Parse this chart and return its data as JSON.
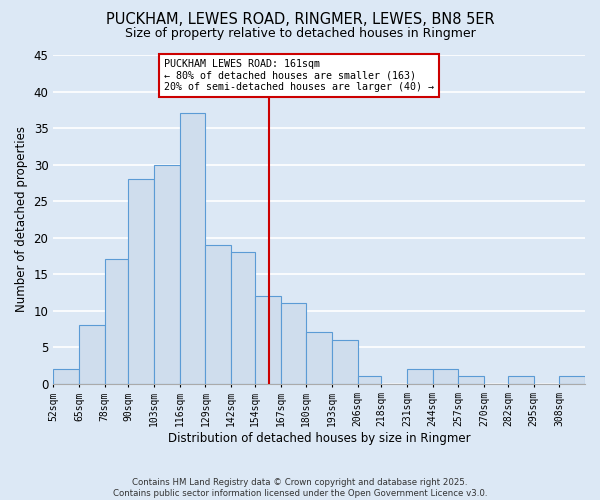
{
  "title": "PUCKHAM, LEWES ROAD, RINGMER, LEWES, BN8 5ER",
  "subtitle": "Size of property relative to detached houses in Ringmer",
  "xlabel": "Distribution of detached houses by size in Ringmer",
  "ylabel": "Number of detached properties",
  "bar_color": "#cfdded",
  "bar_edge_color": "#5b9bd5",
  "background_color": "#dce8f5",
  "grid_color": "#ffffff",
  "categories": [
    "52sqm",
    "65sqm",
    "78sqm",
    "90sqm",
    "103sqm",
    "116sqm",
    "129sqm",
    "142sqm",
    "154sqm",
    "167sqm",
    "180sqm",
    "193sqm",
    "206sqm",
    "218sqm",
    "231sqm",
    "244sqm",
    "257sqm",
    "270sqm",
    "282sqm",
    "295sqm",
    "308sqm"
  ],
  "values": [
    2,
    8,
    17,
    28,
    30,
    37,
    19,
    18,
    12,
    11,
    7,
    6,
    1,
    0,
    2,
    2,
    1,
    0,
    1,
    0,
    1
  ],
  "ylim": [
    0,
    45
  ],
  "yticks": [
    0,
    5,
    10,
    15,
    20,
    25,
    30,
    35,
    40,
    45
  ],
  "vline_color": "#cc0000",
  "annotation_title": "PUCKHAM LEWES ROAD: 161sqm",
  "annotation_line1": "← 80% of detached houses are smaller (163)",
  "annotation_line2": "20% of semi-detached houses are larger (40) →",
  "footer1": "Contains HM Land Registry data © Crown copyright and database right 2025.",
  "footer2": "Contains public sector information licensed under the Open Government Licence v3.0.",
  "bin_edges": [
    52,
    65,
    78,
    90,
    103,
    116,
    129,
    142,
    154,
    167,
    180,
    193,
    206,
    218,
    231,
    244,
    257,
    270,
    282,
    295,
    308,
    321
  ]
}
